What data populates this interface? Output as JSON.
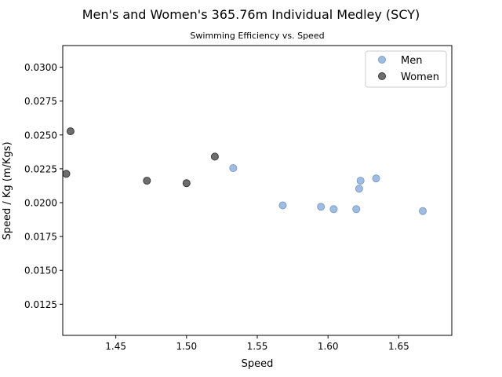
{
  "chart_data": {
    "type": "scatter",
    "title": "Men's and Women's 365.76m Individual Medley (SCY)",
    "subtitle": "Swimming Efficiency vs. Speed",
    "xlabel": "Speed",
    "ylabel": "Speed / Kg (m/Kgs)",
    "xlim": [
      1.4125,
      1.6875
    ],
    "ylim": [
      0.0102,
      0.0316
    ],
    "x_ticks": [
      "1.45",
      "1.50",
      "1.55",
      "1.60",
      "1.65"
    ],
    "y_ticks": [
      "0.0125",
      "0.0150",
      "0.0175",
      "0.0200",
      "0.0225",
      "0.0250",
      "0.0275",
      "0.0300"
    ],
    "legend_position": "top-right",
    "grid": false,
    "series": [
      {
        "name": "Men",
        "color": "#8fb0dc",
        "points": [
          {
            "x": 1.533,
            "y": 0.02255
          },
          {
            "x": 1.568,
            "y": 0.0198
          },
          {
            "x": 1.595,
            "y": 0.0197
          },
          {
            "x": 1.604,
            "y": 0.01952
          },
          {
            "x": 1.62,
            "y": 0.01952
          },
          {
            "x": 1.622,
            "y": 0.02103
          },
          {
            "x": 1.623,
            "y": 0.02162
          },
          {
            "x": 1.634,
            "y": 0.02179
          },
          {
            "x": 1.667,
            "y": 0.01938
          }
        ]
      },
      {
        "name": "Women",
        "color": "#555555",
        "points": [
          {
            "x": 1.415,
            "y": 0.02213
          },
          {
            "x": 1.418,
            "y": 0.02527
          },
          {
            "x": 1.472,
            "y": 0.02162
          },
          {
            "x": 1.5,
            "y": 0.02144
          },
          {
            "x": 1.52,
            "y": 0.0234
          }
        ]
      }
    ]
  }
}
